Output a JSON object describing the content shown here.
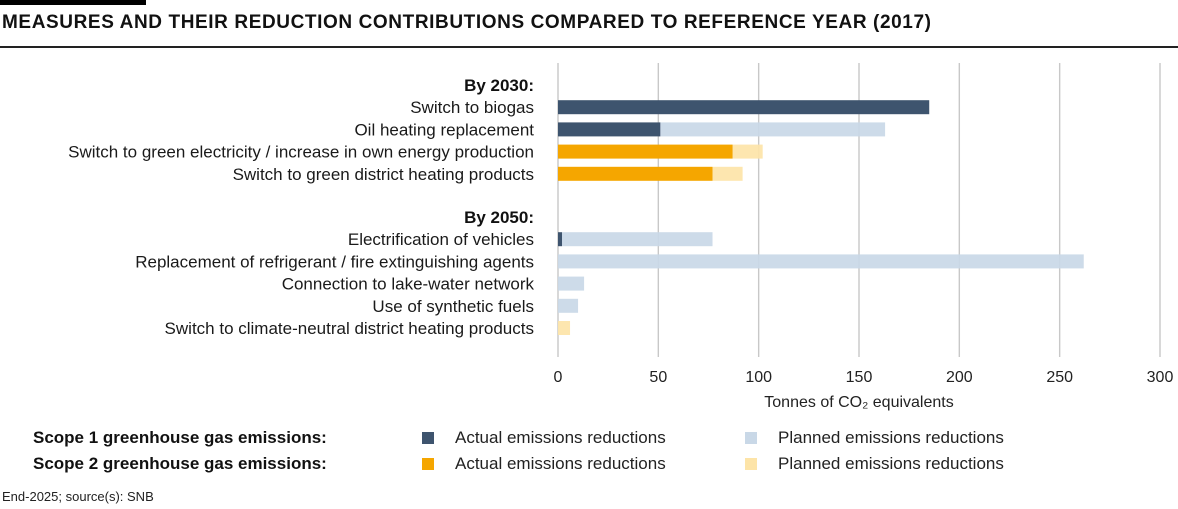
{
  "title": "MEASURES AND THEIR REDUCTION CONTRIBUTIONS COMPARED TO REFERENCE YEAR (2017)",
  "colors": {
    "scope1_actual": "#3e546e",
    "scope1_planned": "#c9d8e7",
    "scope2_actual": "#f5a600",
    "scope2_planned": "#fde4a8",
    "grid": "#c8c8c8"
  },
  "chart_data": {
    "type": "bar",
    "orientation": "horizontal",
    "stacked": true,
    "title": "MEASURES AND THEIR REDUCTION CONTRIBUTIONS COMPARED TO REFERENCE YEAR (2017)",
    "xlabel": "Tonnes of CO₂ equivalents",
    "xlim": [
      0,
      300
    ],
    "xticks": [
      0,
      50,
      100,
      150,
      200,
      250,
      300
    ],
    "grid": true,
    "groups": [
      {
        "label": "By 2030:",
        "items": [
          {
            "label": "Switch to biogas",
            "scope": 1,
            "actual": 185,
            "planned_total": 185
          },
          {
            "label": "Oil heating replacement",
            "scope": 1,
            "actual": 51,
            "planned_total": 163
          },
          {
            "label": "Switch to green electricity / increase in own energy production",
            "scope": 2,
            "actual": 87,
            "planned_total": 102
          },
          {
            "label": "Switch to green district heating products",
            "scope": 2,
            "actual": 77,
            "planned_total": 92
          }
        ]
      },
      {
        "label": "By 2050:",
        "items": [
          {
            "label": "Electrification of vehicles",
            "scope": 1,
            "actual": 2,
            "planned_total": 77
          },
          {
            "label": "Replacement of refrigerant / fire extinguishing agents",
            "scope": 1,
            "actual": 0,
            "planned_total": 262
          },
          {
            "label": "Connection to lake-water network",
            "scope": 1,
            "actual": 0,
            "planned_total": 13
          },
          {
            "label": "Use of synthetic fuels",
            "scope": 1,
            "actual": 0,
            "planned_total": 10
          },
          {
            "label": "Switch to climate-neutral district heating products",
            "scope": 2,
            "actual": 0,
            "planned_total": 6
          }
        ]
      }
    ],
    "legend": {
      "placement": "bottom",
      "rows": [
        {
          "heading": "Scope 1 greenhouse gas emissions:",
          "actual": "Actual emissions reductions",
          "planned": "Planned emissions reductions"
        },
        {
          "heading": "Scope 2 greenhouse gas emissions:",
          "actual": "Actual emissions reductions",
          "planned": "Planned emissions reductions"
        }
      ]
    }
  },
  "source": "End-2025; source(s): SNB"
}
